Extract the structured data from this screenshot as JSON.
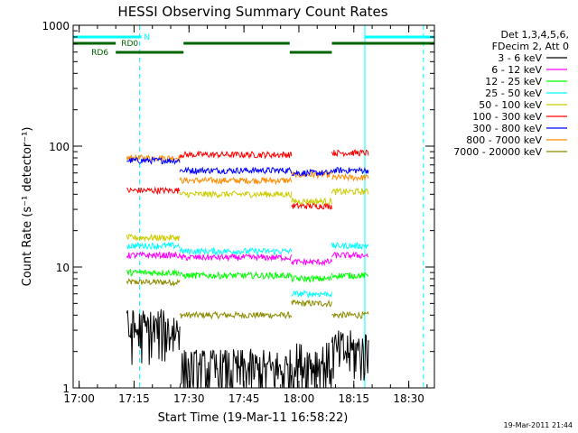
{
  "chart_data": {
    "type": "line",
    "title": "HESSI Observing Summary Count Rates",
    "xlabel": "Start Time (19-Mar-11 16:58:22)",
    "ylabel": "Count Rate (s⁻¹ detector⁻¹)",
    "y_scale": "log",
    "ylim": [
      1,
      1000
    ],
    "xlim": [
      "16:58:22",
      "18:37:00"
    ],
    "x_ticks": [
      "17:00",
      "17:15",
      "17:30",
      "17:45",
      "18:00",
      "18:15",
      "18:30"
    ],
    "y_ticks": [
      "1",
      "10",
      "100",
      "1000"
    ],
    "legend_header": [
      "Det 1,3,4,5,6,",
      "FDecim 2, Att 0"
    ],
    "timestamp": "19-Mar-2011 21:44",
    "flags": {
      "N": {
        "label": "N",
        "color": "#00ffff",
        "intervals": [
          [
            "16:58:22",
            "17:17:00"
          ],
          [
            "18:18:00",
            "18:37:00"
          ]
        ]
      },
      "RD0": {
        "label": "RD0",
        "color": "#006400",
        "intervals": [
          [
            "16:58:22",
            "17:10:00"
          ],
          [
            "17:28:30",
            "17:57:30"
          ],
          [
            "18:09:00",
            "18:37:00"
          ]
        ]
      },
      "RD6": {
        "label": "RD6",
        "color": "#006400",
        "intervals": [
          [
            "17:10:00",
            "17:28:30"
          ],
          [
            "17:57:30",
            "18:09:00"
          ]
        ]
      }
    },
    "vertical_lines": {
      "solid": [
        "16:58:22",
        "18:18:00"
      ],
      "dashed": [
        "17:16:30",
        "18:34:00"
      ],
      "color": "#00ffff"
    },
    "segments": [
      [
        "17:13:00",
        "17:27:30"
      ],
      [
        "17:27:30",
        "17:58:00"
      ],
      [
        "17:58:00",
        "18:09:00"
      ],
      [
        "18:09:00",
        "18:19:00"
      ]
    ],
    "series": [
      {
        "name": "3 - 6 keV",
        "color": "#000000",
        "values": [
          3.0,
          1.4,
          1.6,
          2.0
        ]
      },
      {
        "name": "6 - 12 keV",
        "color": "#ff00ff",
        "values": [
          12.5,
          12.0,
          11.0,
          12.5
        ]
      },
      {
        "name": "12 - 25 keV",
        "color": "#00ff00",
        "values": [
          9.0,
          8.5,
          8.0,
          8.5
        ]
      },
      {
        "name": "25 - 50 keV",
        "color": "#00ffff",
        "values": [
          15.0,
          13.5,
          6.0,
          15.0
        ]
      },
      {
        "name": "50 - 100 keV",
        "color": "#cccc00",
        "values": [
          17.5,
          40.0,
          35.0,
          42.0
        ]
      },
      {
        "name": "100 - 300 keV",
        "color": "#ff0000",
        "values": [
          43.0,
          85.0,
          32.0,
          88.0
        ]
      },
      {
        "name": "300 - 800 keV",
        "color": "#0000ff",
        "values": [
          76.0,
          63.0,
          60.0,
          63.0
        ]
      },
      {
        "name": "800 - 7000 keV",
        "color": "#ff8c00",
        "values": [
          80.0,
          52.0,
          58.0,
          55.0
        ]
      },
      {
        "name": "7000 - 20000 keV",
        "color": "#8b8b00",
        "values": [
          7.5,
          4.0,
          5.0,
          4.0
        ]
      }
    ]
  }
}
